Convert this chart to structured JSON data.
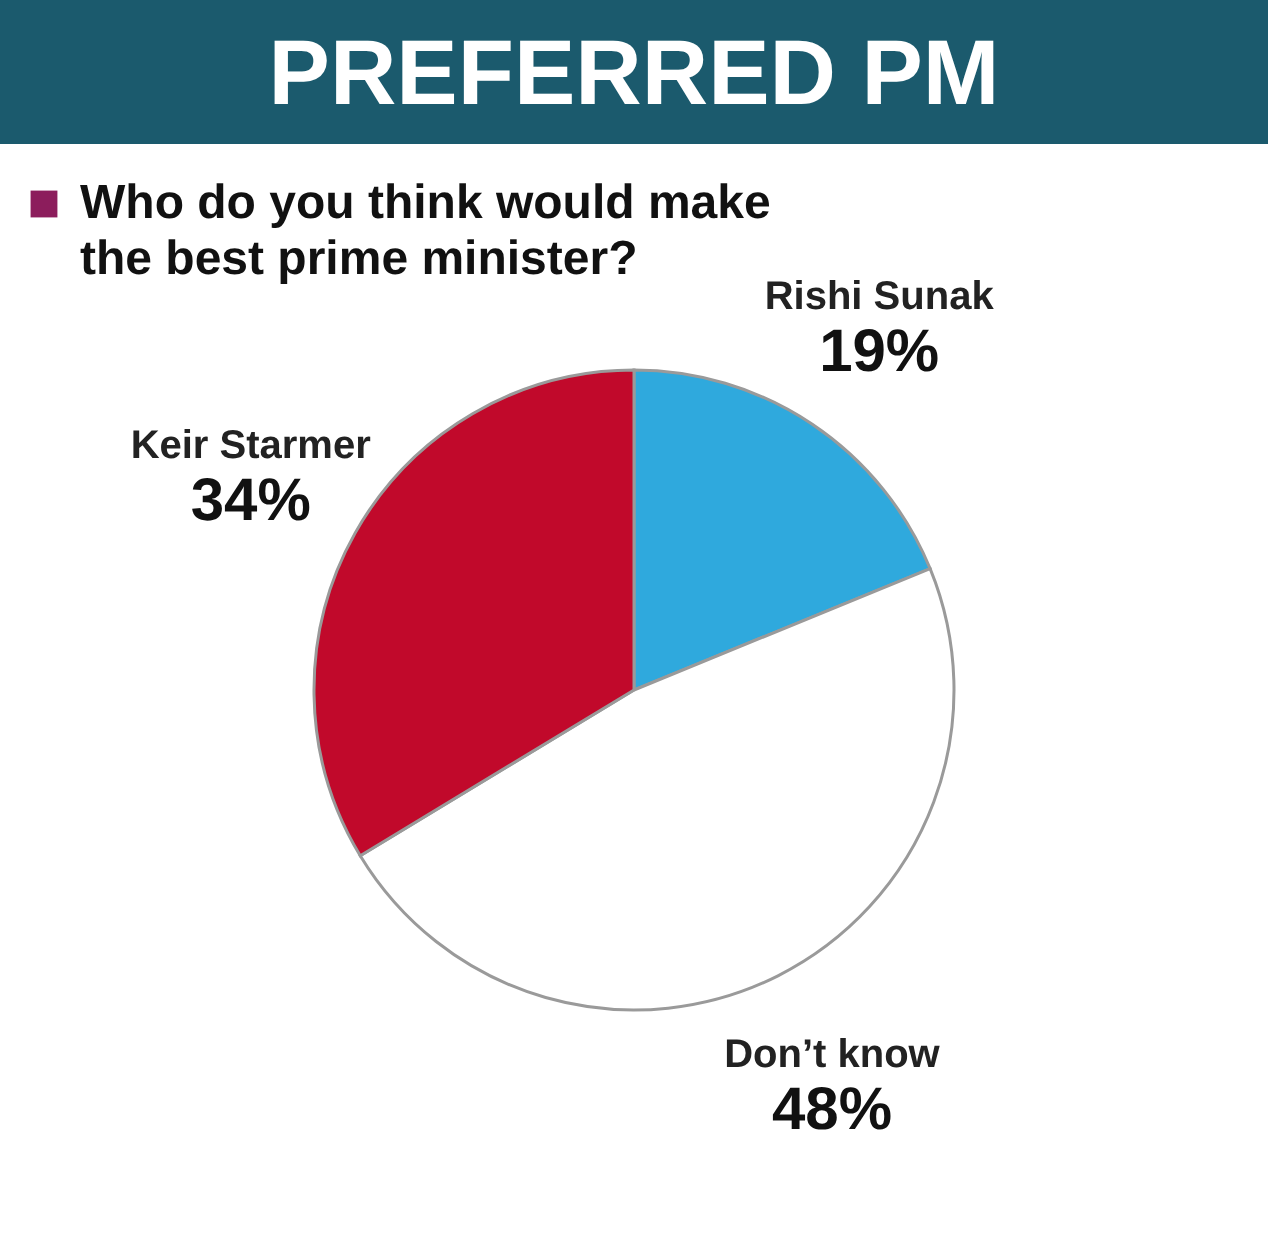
{
  "chart_data": {
    "type": "pie",
    "title": "PREFERRED PM",
    "subtitle": "Who do you think would make the best prime minister?",
    "categories": [
      "Rishi Sunak",
      "Don’t know",
      "Keir Starmer"
    ],
    "values": [
      19,
      48,
      34
    ],
    "value_labels": [
      "19%",
      "48%",
      "34%"
    ],
    "colors": [
      "#2fa9dd",
      "#ffffff",
      "#c1092b"
    ]
  }
}
